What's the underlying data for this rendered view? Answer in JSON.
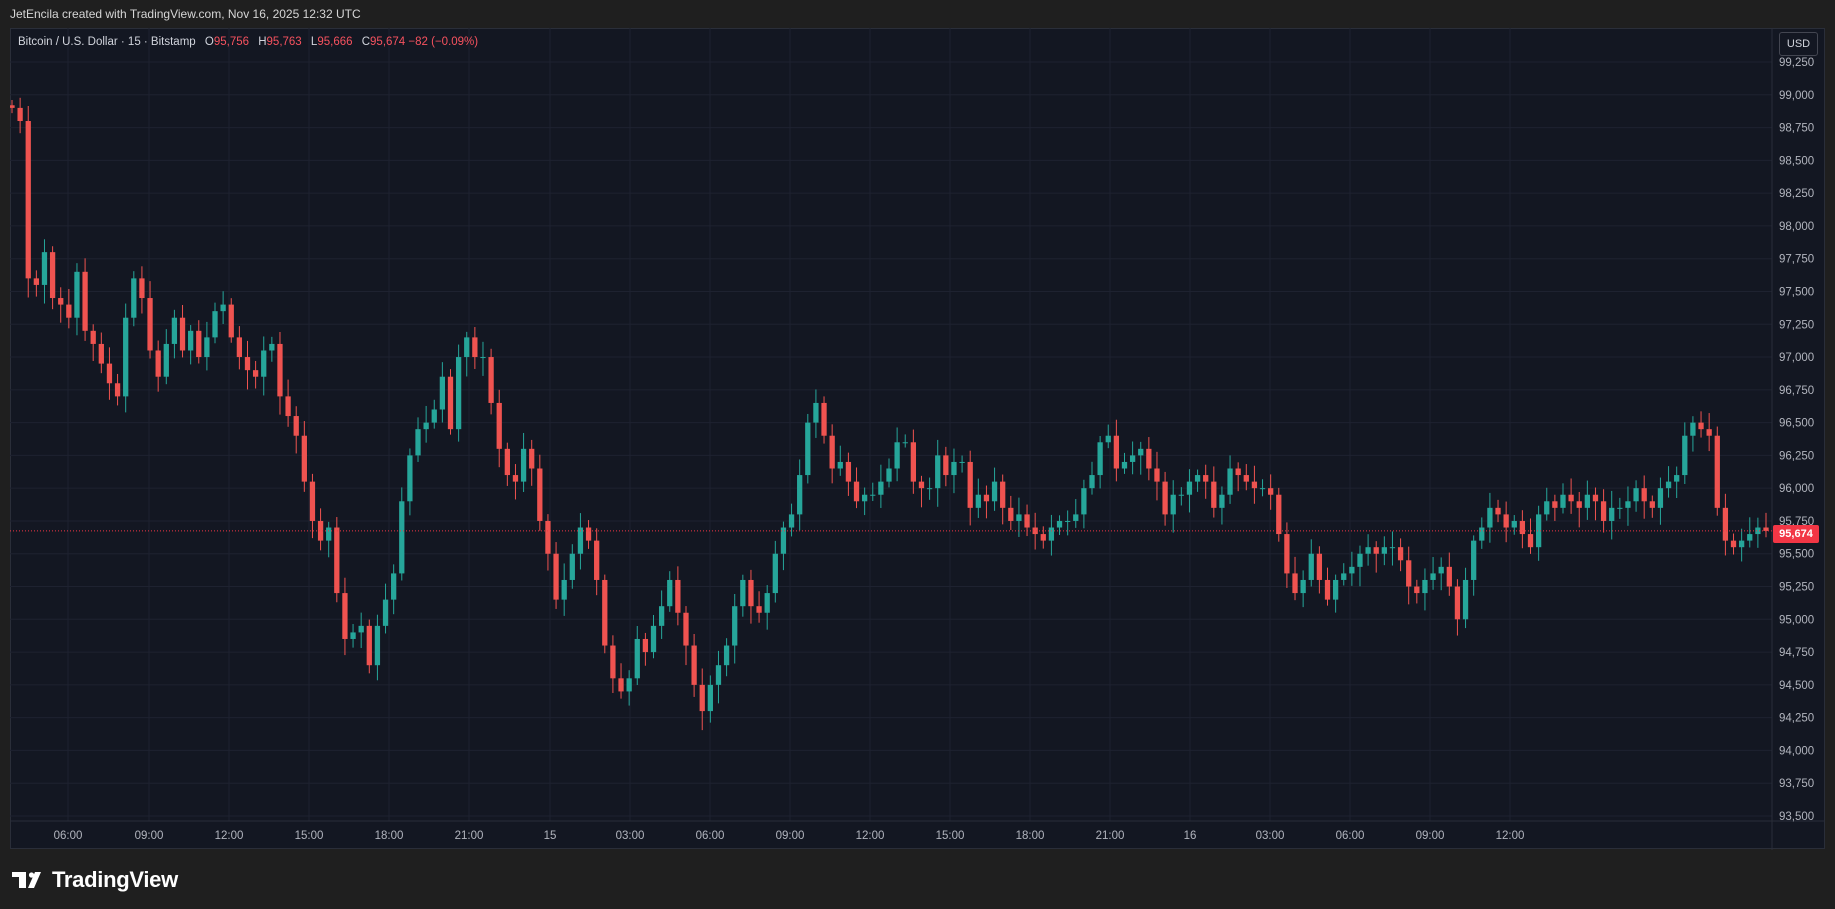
{
  "header": {
    "attribution": "JetEncila created with TradingView.com, Nov 16, 2025 12:32 UTC"
  },
  "legend": {
    "symbol": "Bitcoin / U.S. Dollar · 15 · Bitstamp",
    "o_label": "O",
    "o_value": "95,756",
    "h_label": "H",
    "h_value": "95,763",
    "l_label": "L",
    "l_value": "95,666",
    "c_label": "C",
    "c_value": "95,674",
    "change": "−82 (−0.09%)"
  },
  "currency_button": "USD",
  "last_price_label": "95,674",
  "brand": {
    "name": "TradingView"
  },
  "colors": {
    "background": "#131722",
    "grid": "#1e2230",
    "up": "#26a69a",
    "down": "#ef5350",
    "axis_text": "#b2b5be",
    "last_price_line": "#f23645"
  },
  "chart_data": {
    "type": "candlestick",
    "title": "Bitcoin / U.S. Dollar · 15 · Bitstamp",
    "interval": "15",
    "x_ticks": [
      "06:00",
      "09:00",
      "12:00",
      "15:00",
      "18:00",
      "21:00",
      "15",
      "03:00",
      "06:00",
      "09:00",
      "12:00",
      "15:00",
      "18:00",
      "21:00",
      "16",
      "03:00",
      "06:00",
      "09:00",
      "12:00"
    ],
    "y_ticks": [
      "99,250",
      "99,000",
      "98,750",
      "98,500",
      "98,250",
      "98,000",
      "97,750",
      "97,500",
      "97,250",
      "97,000",
      "96,750",
      "96,500",
      "96,250",
      "96,000",
      "95,750",
      "95,500",
      "95,250",
      "95,000",
      "94,750",
      "94,500",
      "94,250",
      "94,000",
      "93,750",
      "93,500"
    ],
    "ylim": [
      93500,
      99300
    ],
    "last_price": 95674,
    "grid": true,
    "candles_close": [
      98900,
      98800,
      97600,
      97550,
      97800,
      97450,
      97400,
      97300,
      97650,
      97200,
      97100,
      96950,
      96800,
      96700,
      97300,
      97600,
      97450,
      97050,
      96850,
      97100,
      97300,
      97050,
      97200,
      97000,
      97150,
      97350,
      97400,
      97150,
      97000,
      96900,
      96850,
      97050,
      97100,
      96700,
      96550,
      96400,
      96050,
      95750,
      95600,
      95700,
      95200,
      94850,
      94900,
      94950,
      94650,
      94950,
      95150,
      95350,
      95900,
      96250,
      96450,
      96500,
      96600,
      96850,
      96450,
      97000,
      97150,
      97000,
      97000,
      96650,
      96300,
      96100,
      96050,
      96300,
      96150,
      95750,
      95500,
      95150,
      95300,
      95500,
      95700,
      95600,
      95300,
      94800,
      94550,
      94450,
      94550,
      94850,
      94750,
      94950,
      95100,
      95300,
      95050,
      94800,
      94500,
      94300,
      94500,
      94650,
      94800,
      95100,
      95300,
      95100,
      95050,
      95200,
      95500,
      95700,
      95800,
      96100,
      96500,
      96650,
      96400,
      96150,
      96200,
      96050,
      95900,
      95950,
      95950,
      96050,
      96150,
      96350,
      96350,
      96050,
      96000,
      96000,
      96250,
      96100,
      96200,
      96200,
      95850,
      95950,
      95900,
      96050,
      95850,
      95750,
      95800,
      95700,
      95650,
      95600,
      95700,
      95750,
      95750,
      95800,
      96000,
      96100,
      96350,
      96400,
      96150,
      96200,
      96250,
      96300,
      96150,
      96050,
      95800,
      95950,
      95950,
      96050,
      96100,
      96050,
      95850,
      95950,
      96150,
      96100,
      96050,
      96000,
      96000,
      95950,
      95650,
      95350,
      95200,
      95300,
      95500,
      95300,
      95150,
      95300,
      95350,
      95400,
      95500,
      95550,
      95500,
      95550,
      95550,
      95450,
      95250,
      95200,
      95300,
      95350,
      95400,
      95250,
      95000,
      95300,
      95600,
      95700,
      95850,
      95800,
      95700,
      95750,
      95650,
      95550,
      95800,
      95900,
      95850,
      95950,
      95900,
      95850,
      95950,
      95900,
      95750,
      95850,
      95850,
      95900,
      96000,
      95900,
      95850,
      96000,
      96050,
      96100,
      96400,
      96500,
      96450,
      96400,
      95850,
      95600,
      95550,
      95600,
      95650,
      95700,
      95674
    ]
  }
}
